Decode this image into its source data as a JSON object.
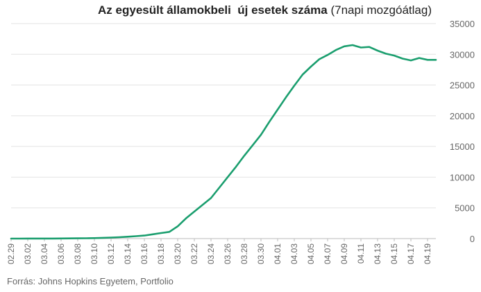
{
  "title": {
    "bold": "Az egyesült államokbeli  új esetek száma",
    "normal": " (7napi mozgóátlag)"
  },
  "source": "Forrás: Johns Hopkins Egyetem, Portfolio",
  "colors": {
    "line": "#1a9e6e",
    "grid": "#e3e3e3",
    "axis": "#bbbbbb"
  },
  "chart_data": {
    "type": "line",
    "title": "Az egyesült államokbeli  új esetek száma (7napi mozgóátlag)",
    "ylim": [
      0,
      35000
    ],
    "yticks": [
      0,
      5000,
      10000,
      15000,
      20000,
      25000,
      30000,
      35000
    ],
    "ytick_labels": [
      "0",
      "5000",
      "10000",
      "15000",
      "20000",
      "25000",
      "30000",
      "35000"
    ],
    "y_axis_side": "right",
    "grid": true,
    "xtick_labels": [
      "02.29",
      "03.02",
      "03.04",
      "03.06",
      "03.08",
      "03.10",
      "03.12",
      "03.14",
      "03.16",
      "03.18",
      "03.20",
      "03.22",
      "03.24",
      "03.26",
      "03.28",
      "03.30",
      "04.01",
      "04.03",
      "04.05",
      "04.07",
      "04.09",
      "04.11",
      "04.13",
      "04.15",
      "04.17",
      "04.19"
    ],
    "x": [
      "02.29",
      "03.01",
      "03.02",
      "03.03",
      "03.04",
      "03.05",
      "03.06",
      "03.07",
      "03.08",
      "03.09",
      "03.10",
      "03.11",
      "03.12",
      "03.13",
      "03.14",
      "03.15",
      "03.16",
      "03.17",
      "03.18",
      "03.19",
      "03.20",
      "03.21",
      "03.22",
      "03.23",
      "03.24",
      "03.25",
      "03.26",
      "03.27",
      "03.28",
      "03.29",
      "03.30",
      "03.31",
      "04.01",
      "04.02",
      "04.03",
      "04.04",
      "04.05",
      "04.06",
      "04.07",
      "04.08",
      "04.09",
      "04.10",
      "04.11",
      "04.12",
      "04.13",
      "04.14",
      "04.15",
      "04.16",
      "04.17",
      "04.18",
      "04.19",
      "04.20"
    ],
    "series": [
      {
        "values": [
          5,
          5,
          8,
          10,
          12,
          15,
          20,
          30,
          40,
          60,
          80,
          120,
          170,
          230,
          300,
          400,
          500,
          700,
          900,
          1100,
          2000,
          3300,
          4400,
          5500,
          6600,
          8300,
          10000,
          11700,
          13500,
          15200,
          16900,
          19000,
          21000,
          23000,
          24900,
          26700,
          28000,
          29200,
          29900,
          30700,
          31300,
          31500,
          31100,
          31200,
          30600,
          30100,
          29800,
          29300,
          29000,
          29400,
          29100,
          29100
        ]
      }
    ]
  }
}
